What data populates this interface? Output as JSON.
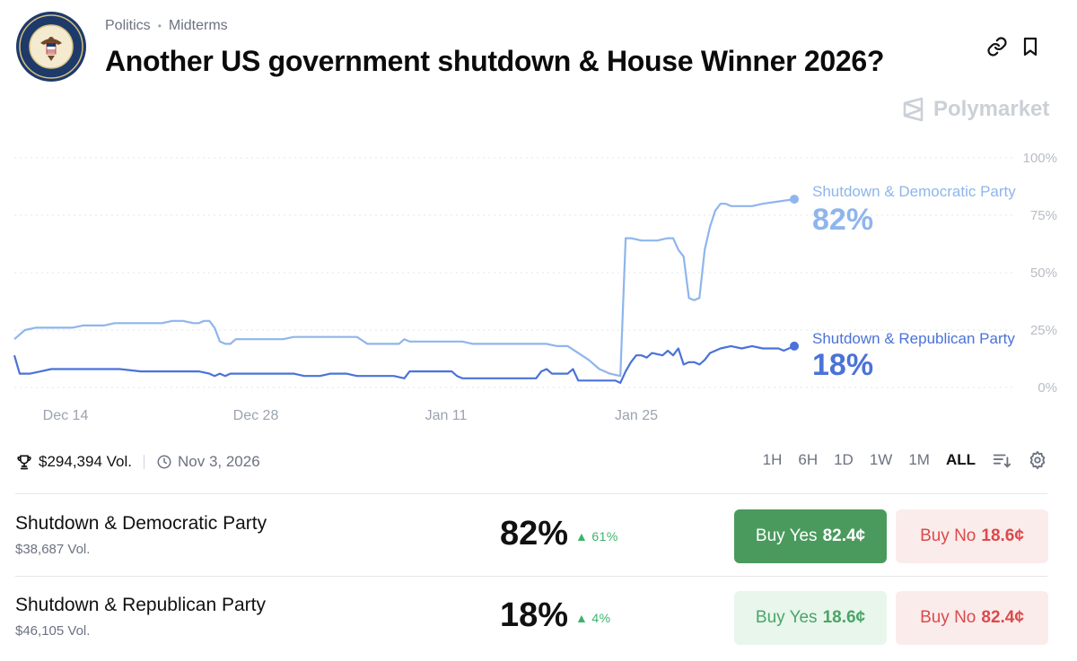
{
  "breadcrumb": {
    "category": "Politics",
    "subcategory": "Midterms"
  },
  "title": "Another US government shutdown & House Winner 2026?",
  "logo_name": "house-of-representatives-seal",
  "brand": {
    "name": "Polymarket"
  },
  "icons": {
    "link": "link-icon",
    "bookmark": "bookmark-icon",
    "trophy": "trophy-icon",
    "clock": "clock-icon",
    "sort": "sort-icon",
    "settings": "gear-icon"
  },
  "stats": {
    "volume": "$294,394 Vol.",
    "end_date": "Nov 3, 2026"
  },
  "ranges": [
    "1H",
    "6H",
    "1D",
    "1W",
    "1M",
    "ALL"
  ],
  "active_range": "ALL",
  "colors": {
    "democratic": "#8fb5ec",
    "republican": "#4a72d8",
    "yes_strong": "#4a9a5d",
    "no_text": "#dc4a4a",
    "up": "#3cb36b"
  },
  "chart_data": {
    "type": "line",
    "x_ticks": [
      "Dec 14",
      "Dec 28",
      "Jan 11",
      "Jan 25"
    ],
    "y_ticks": [
      "100%",
      "75%",
      "50%",
      "25%",
      "0%"
    ],
    "ylim": [
      0,
      100
    ],
    "grid": true,
    "series": [
      {
        "name": "Shutdown & Democratic Party",
        "label_value": "82%",
        "color": "#8fb5ec",
        "points": [
          [
            0,
            21
          ],
          [
            2,
            25
          ],
          [
            4,
            26
          ],
          [
            7,
            26
          ],
          [
            11,
            26
          ],
          [
            13,
            27
          ],
          [
            17,
            27
          ],
          [
            19,
            28
          ],
          [
            23,
            28
          ],
          [
            26,
            28
          ],
          [
            28,
            28
          ],
          [
            30,
            29
          ],
          [
            32,
            29
          ],
          [
            34,
            28
          ],
          [
            35,
            28
          ],
          [
            36,
            29
          ],
          [
            37,
            29
          ],
          [
            38,
            26
          ],
          [
            39,
            20
          ],
          [
            40,
            19
          ],
          [
            41,
            19
          ],
          [
            42,
            21
          ],
          [
            46,
            21
          ],
          [
            49,
            21
          ],
          [
            51,
            21
          ],
          [
            53,
            22
          ],
          [
            55,
            22
          ],
          [
            58,
            22
          ],
          [
            61,
            22
          ],
          [
            63,
            22
          ],
          [
            65,
            22
          ],
          [
            67,
            19
          ],
          [
            69,
            19
          ],
          [
            72,
            19
          ],
          [
            73,
            19
          ],
          [
            74,
            21
          ],
          [
            75,
            20
          ],
          [
            77,
            20
          ],
          [
            80,
            20
          ],
          [
            83,
            20
          ],
          [
            85,
            20
          ],
          [
            87,
            19
          ],
          [
            90,
            19
          ],
          [
            93,
            19
          ],
          [
            96,
            19
          ],
          [
            99,
            19
          ],
          [
            101,
            19
          ],
          [
            103,
            18
          ],
          [
            105,
            18
          ],
          [
            107,
            15
          ],
          [
            109,
            12
          ],
          [
            111,
            8
          ],
          [
            113,
            6
          ],
          [
            115,
            5
          ],
          [
            116,
            65
          ],
          [
            117,
            65
          ],
          [
            119,
            64
          ],
          [
            122,
            64
          ],
          [
            124,
            65
          ],
          [
            125,
            65
          ],
          [
            126,
            60
          ],
          [
            127,
            57
          ],
          [
            128,
            39
          ],
          [
            129,
            38
          ],
          [
            130,
            39
          ],
          [
            131,
            60
          ],
          [
            132,
            70
          ],
          [
            133,
            77
          ],
          [
            134,
            80
          ],
          [
            135,
            80
          ],
          [
            136,
            79
          ],
          [
            137,
            79
          ],
          [
            140,
            79
          ],
          [
            142,
            80
          ],
          [
            145,
            81
          ],
          [
            148,
            82
          ]
        ]
      },
      {
        "name": "Shutdown & Republican Party",
        "label_value": "18%",
        "color": "#4a72d8",
        "points": [
          [
            0,
            14
          ],
          [
            1,
            6
          ],
          [
            3,
            6
          ],
          [
            5,
            7
          ],
          [
            7,
            8
          ],
          [
            12,
            8
          ],
          [
            17,
            8
          ],
          [
            20,
            8
          ],
          [
            24,
            7
          ],
          [
            28,
            7
          ],
          [
            32,
            7
          ],
          [
            35,
            7
          ],
          [
            37,
            6
          ],
          [
            38,
            5
          ],
          [
            39,
            6
          ],
          [
            40,
            5
          ],
          [
            41,
            6
          ],
          [
            42,
            6
          ],
          [
            46,
            6
          ],
          [
            49,
            6
          ],
          [
            51,
            6
          ],
          [
            53,
            6
          ],
          [
            55,
            5
          ],
          [
            58,
            5
          ],
          [
            60,
            6
          ],
          [
            63,
            6
          ],
          [
            65,
            5
          ],
          [
            67,
            5
          ],
          [
            69,
            5
          ],
          [
            72,
            5
          ],
          [
            74,
            4
          ],
          [
            75,
            7
          ],
          [
            76,
            7
          ],
          [
            77,
            7
          ],
          [
            79,
            7
          ],
          [
            81,
            7
          ],
          [
            83,
            7
          ],
          [
            84,
            5
          ],
          [
            85,
            4
          ],
          [
            87,
            4
          ],
          [
            90,
            4
          ],
          [
            93,
            4
          ],
          [
            96,
            4
          ],
          [
            99,
            4
          ],
          [
            100,
            7
          ],
          [
            101,
            8
          ],
          [
            102,
            6
          ],
          [
            103,
            6
          ],
          [
            105,
            6
          ],
          [
            106,
            8
          ],
          [
            107,
            3
          ],
          [
            109,
            3
          ],
          [
            111,
            3
          ],
          [
            113,
            3
          ],
          [
            114,
            3
          ],
          [
            115,
            2
          ],
          [
            116,
            7
          ],
          [
            117,
            11
          ],
          [
            118,
            14
          ],
          [
            119,
            14
          ],
          [
            120,
            13
          ],
          [
            121,
            15
          ],
          [
            123,
            14
          ],
          [
            124,
            16
          ],
          [
            125,
            14
          ],
          [
            126,
            17
          ],
          [
            127,
            10
          ],
          [
            128,
            11
          ],
          [
            129,
            11
          ],
          [
            130,
            10
          ],
          [
            131,
            12
          ],
          [
            132,
            15
          ],
          [
            134,
            17
          ],
          [
            136,
            18
          ],
          [
            138,
            17
          ],
          [
            140,
            18
          ],
          [
            142,
            17
          ],
          [
            145,
            17
          ],
          [
            146,
            16
          ],
          [
            148,
            18
          ]
        ]
      }
    ]
  },
  "outcomes": [
    {
      "name": "Shutdown & Democratic Party",
      "volume": "$38,687 Vol.",
      "percent": "82%",
      "change": "61%",
      "yes_label": "Buy Yes",
      "yes_price": "82.4¢",
      "no_label": "Buy No",
      "no_price": "18.6¢"
    },
    {
      "name": "Shutdown & Republican Party",
      "volume": "$46,105 Vol.",
      "percent": "18%",
      "change": "4%",
      "yes_label": "Buy Yes",
      "yes_price": "18.6¢",
      "no_label": "Buy No",
      "no_price": "82.4¢"
    }
  ]
}
